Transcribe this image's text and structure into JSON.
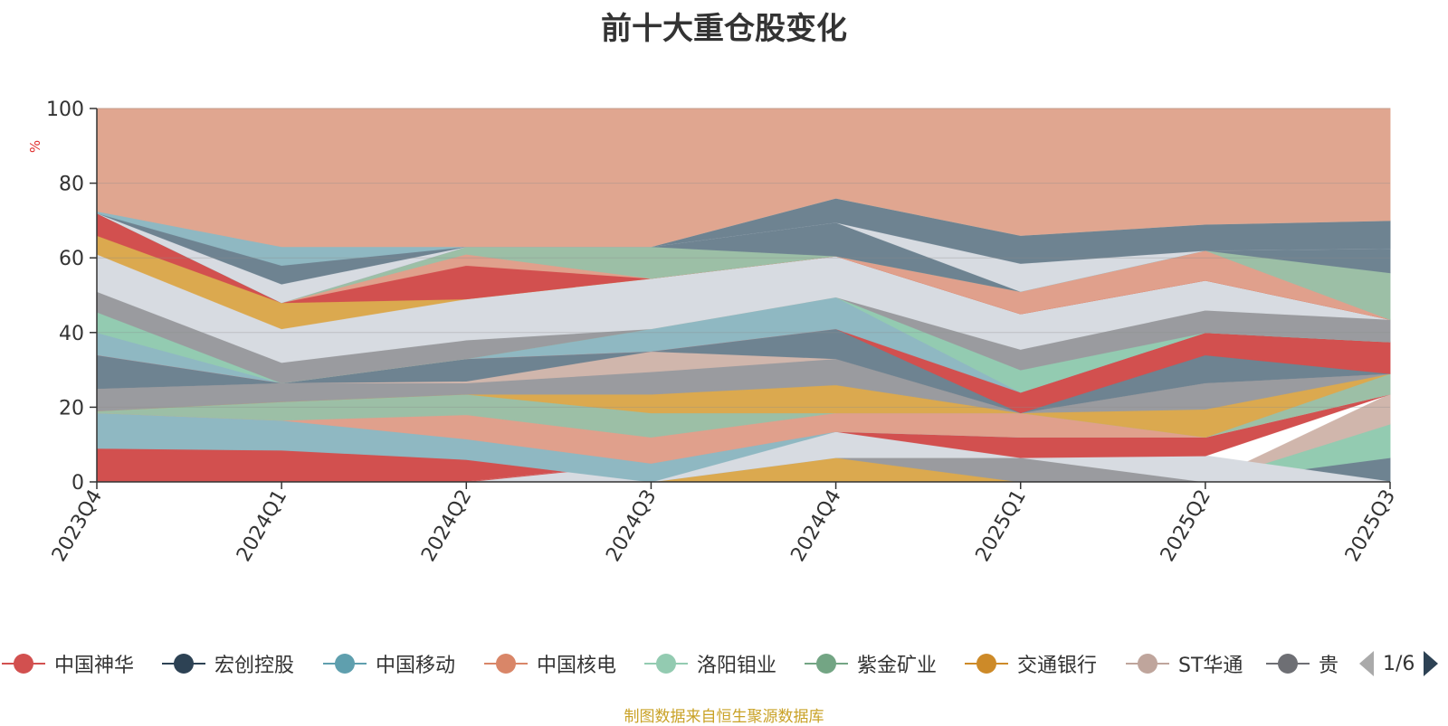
{
  "title": "前十大重仓股变化",
  "source_note": "制图数据来自恒生聚源数据库",
  "legend": {
    "items": [
      {
        "name": "中国神华",
        "color": "#d2504f"
      },
      {
        "name": "宏创控股",
        "color": "#2d4254"
      },
      {
        "name": "中国移动",
        "color": "#5f9fae"
      },
      {
        "name": "中国核电",
        "color": "#d98668"
      },
      {
        "name": "洛阳钼业",
        "color": "#93cbb1"
      },
      {
        "name": "紫金矿业",
        "color": "#73a584"
      },
      {
        "name": "交通银行",
        "color": "#cd8a28"
      },
      {
        "name": "ST华通",
        "color": "#bfa59c"
      },
      {
        "name": "贵",
        "color": "#6e6f74"
      }
    ],
    "page": "1/6"
  },
  "chart_data": {
    "type": "area",
    "title": "前十大重仓股变化",
    "ylabel": "%",
    "ylim": [
      0,
      100
    ],
    "yticks": [
      0,
      20,
      40,
      60,
      80,
      100
    ],
    "grid": true,
    "categories": [
      "2023Q4",
      "2024Q1",
      "2024Q2",
      "2024Q3",
      "2024Q4",
      "2025Q1",
      "2025Q2",
      "2025Q3"
    ],
    "bands": [
      {
        "color": "#d2504f",
        "lower": [
          0,
          0,
          0,
          0,
          0,
          0,
          0,
          0
        ],
        "upper": [
          9,
          8.5,
          6,
          0,
          0,
          0,
          0,
          0
        ]
      },
      {
        "color": "#6e8391",
        "lower": [
          0,
          0,
          0,
          0,
          0,
          0,
          0,
          0
        ],
        "upper": [
          0,
          0,
          0,
          0,
          0,
          0,
          0,
          6.5
        ]
      },
      {
        "color": "#93cbb1",
        "lower": [
          0,
          0,
          0,
          0,
          0,
          0,
          0,
          6.5
        ],
        "upper": [
          0,
          0,
          0,
          0,
          0,
          0,
          0,
          15.5
        ]
      },
      {
        "color": "#d0b6ac",
        "lower": [
          0,
          0,
          0,
          0,
          0,
          0,
          0,
          15.5
        ],
        "upper": [
          0,
          0,
          0,
          0,
          0,
          0,
          0,
          23.5
        ]
      },
      {
        "color": "#dba94f",
        "lower": [
          0,
          0,
          0,
          0,
          0,
          0,
          0,
          0
        ],
        "upper": [
          0,
          0,
          0,
          0,
          6.5,
          0,
          0,
          0
        ]
      },
      {
        "color": "#9a9b9f",
        "lower": [
          0,
          0,
          0,
          0,
          6.5,
          0,
          0,
          0
        ],
        "upper": [
          0,
          0,
          0,
          0,
          6.5,
          6.5,
          0,
          0
        ]
      },
      {
        "color": "#d7dbe1",
        "lower": [
          0,
          0,
          0,
          0,
          6.5,
          6.5,
          0,
          0
        ],
        "upper": [
          0,
          0,
          0,
          5,
          13.5,
          6.5,
          7,
          0
        ]
      },
      {
        "color": "#d2504f",
        "lower": [
          0,
          0,
          0,
          5,
          13.5,
          6.5,
          7,
          23.5
        ],
        "upper": [
          0,
          0,
          0,
          5,
          13.5,
          12,
          12,
          23.5
        ]
      },
      {
        "color": "#8fb8c2",
        "lower": [
          9,
          8.5,
          6,
          0,
          13.5,
          12,
          12,
          23.5
        ],
        "upper": [
          18.5,
          16.5,
          11.5,
          5,
          13.5,
          12,
          12,
          23.5
        ]
      },
      {
        "color": "#e0a08c",
        "lower": [
          18.5,
          16.5,
          11.5,
          5,
          13.5,
          12,
          12,
          23.5
        ],
        "upper": [
          18.5,
          16.5,
          18,
          12,
          18.5,
          18.5,
          12,
          23.5
        ]
      },
      {
        "color": "#9cbfa6",
        "lower": [
          18.5,
          16.5,
          18,
          12,
          18.5,
          18.5,
          12,
          23.5
        ],
        "upper": [
          19,
          21.5,
          23.5,
          18.5,
          18.5,
          18.5,
          12,
          29
        ]
      },
      {
        "color": "#dba94f",
        "lower": [
          19,
          21.5,
          23.5,
          18.5,
          18.5,
          18.5,
          12,
          29
        ],
        "upper": [
          19,
          21.5,
          23.5,
          23.5,
          26,
          18.5,
          19.5,
          29
        ]
      },
      {
        "color": "#9a9b9f",
        "lower": [
          19,
          21.5,
          23.5,
          23.5,
          26,
          18.5,
          19.5,
          29
        ],
        "upper": [
          25,
          26.5,
          26.5,
          29.5,
          33,
          18.5,
          26.5,
          29
        ]
      },
      {
        "color": "#d0b6ac",
        "lower": [
          25,
          26.5,
          26.5,
          29.5,
          33,
          18.5,
          26.5,
          29
        ],
        "upper": [
          25,
          26.5,
          27,
          35,
          33,
          18.5,
          26.5,
          29
        ]
      },
      {
        "color": "#6e8391",
        "lower": [
          25,
          26.5,
          27,
          35,
          33,
          18.5,
          26.5,
          29
        ],
        "upper": [
          34,
          26.5,
          33,
          35,
          41,
          18.5,
          34,
          29
        ]
      },
      {
        "color": "#d2504f",
        "lower": [
          34,
          26.5,
          33,
          35,
          41,
          18.5,
          34,
          29
        ],
        "upper": [
          34,
          26.5,
          33,
          35,
          41,
          24,
          40,
          37.5
        ]
      },
      {
        "color": "#8fb8c2",
        "lower": [
          34,
          26.5,
          33,
          35,
          41,
          24,
          40,
          37.5
        ],
        "upper": [
          40,
          26.5,
          33,
          41,
          49.5,
          24,
          40,
          37.5
        ]
      },
      {
        "color": "#93cbb1",
        "lower": [
          40,
          26.5,
          33,
          41,
          49.5,
          24,
          40,
          37.5
        ],
        "upper": [
          45.5,
          26.5,
          33,
          41,
          49.5,
          30,
          40,
          37.5
        ]
      },
      {
        "color": "#9a9b9f",
        "lower": [
          45.5,
          26.5,
          33,
          41,
          49.5,
          30,
          40,
          37.5
        ],
        "upper": [
          51,
          32,
          38,
          41,
          49.5,
          35.5,
          46,
          43.5
        ]
      },
      {
        "color": "#d7dbe1",
        "lower": [
          51,
          32,
          38,
          41,
          49.5,
          35.5,
          46,
          43.5
        ],
        "upper": [
          61,
          41,
          49,
          54.5,
          60.5,
          45,
          54,
          43.5
        ]
      },
      {
        "color": "#dba94f",
        "lower": [
          61,
          41,
          49,
          54.5,
          60.5,
          45,
          54,
          43.5
        ],
        "upper": [
          66,
          48,
          49,
          54.5,
          60.5,
          45,
          54,
          43.5
        ]
      },
      {
        "color": "#d2504f",
        "lower": [
          66,
          48,
          49,
          54.5,
          60.5,
          45,
          54,
          43.5
        ],
        "upper": [
          72,
          48,
          58,
          54.5,
          60.5,
          45,
          54,
          43.5
        ]
      },
      {
        "color": "#e0a08c",
        "lower": [
          72,
          48,
          58,
          54.5,
          60.5,
          45,
          54,
          43.5
        ],
        "upper": [
          72,
          48,
          61,
          63,
          60.5,
          51,
          62,
          43.5
        ]
      },
      {
        "color": "#9cbfa6",
        "lower": [
          72,
          48,
          61,
          54.5,
          60.5,
          51,
          62,
          43.5
        ],
        "upper": [
          72,
          48,
          63,
          63,
          60.5,
          51,
          62,
          56
        ]
      },
      {
        "color": "#6e8391",
        "lower": [
          72,
          48,
          63,
          63,
          60.5,
          51,
          62,
          56
        ],
        "upper": [
          72,
          48,
          63,
          63,
          69.5,
          51,
          62,
          70
        ]
      },
      {
        "color": "#d7dbe1",
        "lower": [
          72,
          48,
          63,
          63,
          69.5,
          51,
          62,
          62.5
        ],
        "upper": [
          72,
          53,
          63,
          63,
          69.5,
          58.5,
          62,
          62.5
        ]
      },
      {
        "color": "#6e8391",
        "lower": [
          72,
          53,
          63,
          63,
          69.5,
          58.5,
          62,
          62.5
        ],
        "upper": [
          72,
          58,
          63,
          63,
          76,
          66,
          69,
          70
        ]
      },
      {
        "color": "#8fb8c2",
        "lower": [
          72,
          58,
          63,
          63,
          76,
          66,
          69,
          70
        ],
        "upper": [
          72.5,
          63,
          63,
          63,
          76,
          66,
          69,
          70
        ]
      },
      {
        "color": "#e0a690",
        "lower": [
          72.5,
          63,
          63,
          63,
          76,
          66,
          69,
          70
        ],
        "upper": [
          100,
          100,
          100,
          100,
          100,
          100,
          100,
          100
        ]
      }
    ]
  }
}
